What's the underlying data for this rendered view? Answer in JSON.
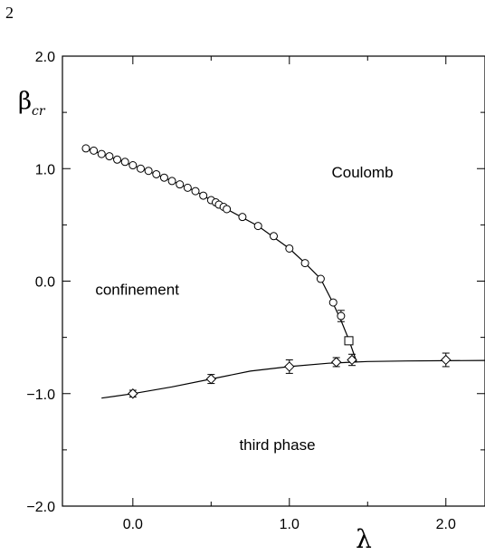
{
  "page_number": "2",
  "chart_data": {
    "type": "scatter",
    "title": "",
    "xlabel": "λ",
    "ylabel_main": "β",
    "ylabel_sub": "cr",
    "xlim": [
      -0.45,
      2.25
    ],
    "ylim": [
      -2.0,
      2.0
    ],
    "x_ticks": [
      0.0,
      1.0,
      2.0
    ],
    "x_tick_labels": [
      "0.0",
      "1.0",
      "2.0"
    ],
    "y_ticks": [
      2.0,
      1.0,
      0.0,
      -1.0,
      -2.0
    ],
    "y_tick_labels": [
      "2.0",
      "1.0",
      "0.0",
      "−1.0",
      "−2.0"
    ],
    "grid": false,
    "region_labels": [
      {
        "text": "Coulomb",
        "x": 1.27,
        "y": 0.92
      },
      {
        "text": "confinement",
        "x": -0.24,
        "y": -0.12
      },
      {
        "text": "third phase",
        "x": 0.68,
        "y": -1.5
      }
    ],
    "series": [
      {
        "marker": "circle",
        "points": [
          {
            "x": -0.3,
            "y": 1.18
          },
          {
            "x": -0.25,
            "y": 1.16
          },
          {
            "x": -0.2,
            "y": 1.13
          },
          {
            "x": -0.15,
            "y": 1.11
          },
          {
            "x": -0.1,
            "y": 1.08
          },
          {
            "x": -0.05,
            "y": 1.06
          },
          {
            "x": 0.0,
            "y": 1.03
          },
          {
            "x": 0.05,
            "y": 1.0
          },
          {
            "x": 0.1,
            "y": 0.98
          },
          {
            "x": 0.15,
            "y": 0.95
          },
          {
            "x": 0.2,
            "y": 0.92
          },
          {
            "x": 0.25,
            "y": 0.89
          },
          {
            "x": 0.3,
            "y": 0.86
          },
          {
            "x": 0.35,
            "y": 0.83
          },
          {
            "x": 0.4,
            "y": 0.8
          },
          {
            "x": 0.45,
            "y": 0.76
          },
          {
            "x": 0.5,
            "y": 0.72
          },
          {
            "x": 0.53,
            "y": 0.7
          },
          {
            "x": 0.55,
            "y": 0.68
          },
          {
            "x": 0.58,
            "y": 0.66
          },
          {
            "x": 0.6,
            "y": 0.64
          },
          {
            "x": 0.7,
            "y": 0.57
          },
          {
            "x": 0.8,
            "y": 0.49
          },
          {
            "x": 0.9,
            "y": 0.4
          },
          {
            "x": 1.0,
            "y": 0.29
          },
          {
            "x": 1.1,
            "y": 0.16
          },
          {
            "x": 1.2,
            "y": 0.02
          },
          {
            "x": 1.28,
            "y": -0.19
          },
          {
            "x": 1.33,
            "y": -0.31,
            "err": 0.05
          }
        ]
      },
      {
        "marker": "square",
        "points": [
          {
            "x": 1.38,
            "y": -0.53
          }
        ]
      },
      {
        "marker": "diamond",
        "points": [
          {
            "x": 0.0,
            "y": -1.0,
            "err": 0.03
          },
          {
            "x": 0.5,
            "y": -0.87,
            "err": 0.04
          },
          {
            "x": 1.0,
            "y": -0.76,
            "err": 0.06
          },
          {
            "x": 1.3,
            "y": -0.72,
            "err": 0.04
          },
          {
            "x": 1.4,
            "y": -0.7,
            "err": 0.05
          },
          {
            "x": 2.0,
            "y": -0.7,
            "err": 0.06
          }
        ]
      }
    ],
    "curves": [
      {
        "name": "",
        "points": [
          [
            -0.32,
            1.19
          ],
          [
            -0.2,
            1.13
          ],
          [
            0.0,
            1.03
          ],
          [
            0.2,
            0.92
          ],
          [
            0.4,
            0.8
          ],
          [
            0.6,
            0.64
          ],
          [
            0.8,
            0.49
          ],
          [
            1.0,
            0.29
          ],
          [
            1.1,
            0.16
          ],
          [
            1.2,
            0.02
          ],
          [
            1.27,
            -0.17
          ],
          [
            1.33,
            -0.35
          ],
          [
            1.38,
            -0.52
          ],
          [
            1.41,
            -0.64
          ],
          [
            1.43,
            -0.72
          ]
        ]
      },
      {
        "name": "",
        "points": [
          [
            -0.2,
            -1.04
          ],
          [
            0.0,
            -1.0
          ],
          [
            0.25,
            -0.94
          ],
          [
            0.5,
            -0.87
          ],
          [
            0.75,
            -0.8
          ],
          [
            1.0,
            -0.76
          ],
          [
            1.25,
            -0.73
          ],
          [
            1.5,
            -0.715
          ],
          [
            1.75,
            -0.71
          ],
          [
            2.25,
            -0.705
          ]
        ]
      }
    ]
  }
}
